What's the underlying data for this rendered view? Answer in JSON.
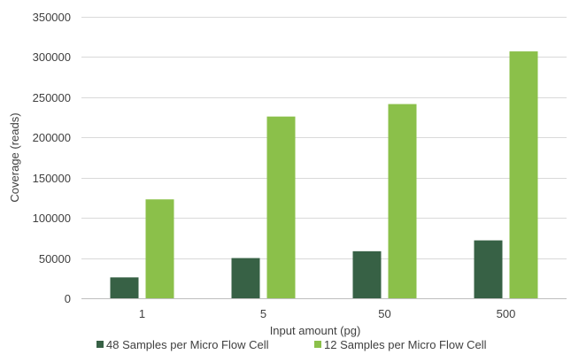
{
  "chart_data": {
    "type": "bar",
    "title": "",
    "xlabel": "Input amount (pg)",
    "ylabel": "Coverage (reads)",
    "categories": [
      "1",
      "5",
      "50",
      "500"
    ],
    "series": [
      {
        "name": "48 Samples per Micro Flow Cell",
        "color": "#376145",
        "values": [
          26000,
          50000,
          58500,
          72000
        ]
      },
      {
        "name": "12 Samples per Micro Flow Cell",
        "color": "#8bc04a",
        "values": [
          123000,
          226000,
          241500,
          307000
        ]
      }
    ],
    "ylim": [
      0,
      350000
    ],
    "yticks": [
      0,
      50000,
      100000,
      150000,
      200000,
      250000,
      300000,
      350000
    ],
    "ytick_labels": [
      "0",
      "50000",
      "100000",
      "150000",
      "200000",
      "250000",
      "300000",
      "350000"
    ],
    "grid": true,
    "legend_position": "bottom"
  }
}
